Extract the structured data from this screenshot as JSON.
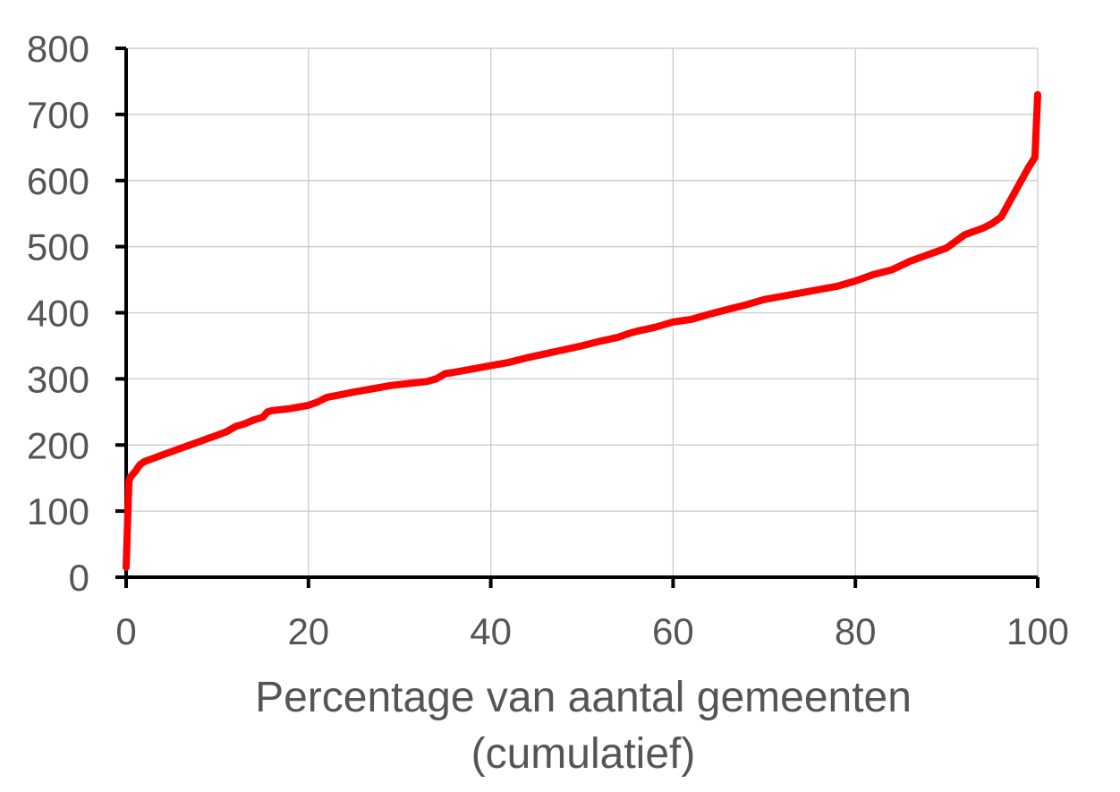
{
  "chart_data": {
    "type": "line",
    "title": "",
    "xlabel": "Percentage van aantal gemeenten",
    "xlabel_line2": "(cumulatief)",
    "ylabel": "",
    "xlim": [
      0,
      100
    ],
    "ylim": [
      0,
      800
    ],
    "x_ticks": [
      0,
      20,
      40,
      60,
      80,
      100
    ],
    "y_ticks": [
      0,
      100,
      200,
      300,
      400,
      500,
      600,
      700,
      800
    ],
    "grid": true,
    "legend": "none",
    "series": [
      {
        "color": "#ff0000",
        "x": [
          0,
          0.3,
          0.5,
          1,
          1.5,
          2,
          3,
          4,
          5,
          6,
          7,
          8,
          9,
          10,
          11,
          12,
          13,
          14,
          15,
          15.5,
          16,
          18,
          20,
          21,
          22,
          25,
          27,
          29,
          31,
          33,
          34,
          35,
          36,
          38,
          40,
          42,
          44,
          46,
          48,
          50,
          52,
          54,
          55,
          56,
          58,
          60,
          62,
          64,
          66,
          68,
          70,
          72,
          74,
          76,
          78,
          80,
          82,
          84,
          86,
          88,
          90,
          91,
          92,
          94,
          95,
          96,
          97,
          98,
          99,
          99.7,
          100
        ],
        "y": [
          15,
          145,
          152,
          160,
          170,
          175,
          180,
          185,
          190,
          195,
          200,
          205,
          210,
          215,
          220,
          228,
          232,
          238,
          242,
          250,
          252,
          255,
          260,
          265,
          272,
          280,
          285,
          290,
          293,
          296,
          300,
          308,
          310,
          315,
          320,
          325,
          332,
          338,
          344,
          350,
          357,
          363,
          368,
          372,
          378,
          386,
          390,
          398,
          405,
          412,
          420,
          425,
          430,
          435,
          440,
          448,
          458,
          465,
          478,
          488,
          498,
          508,
          518,
          528,
          535,
          545,
          570,
          595,
          620,
          635,
          730
        ]
      }
    ]
  }
}
